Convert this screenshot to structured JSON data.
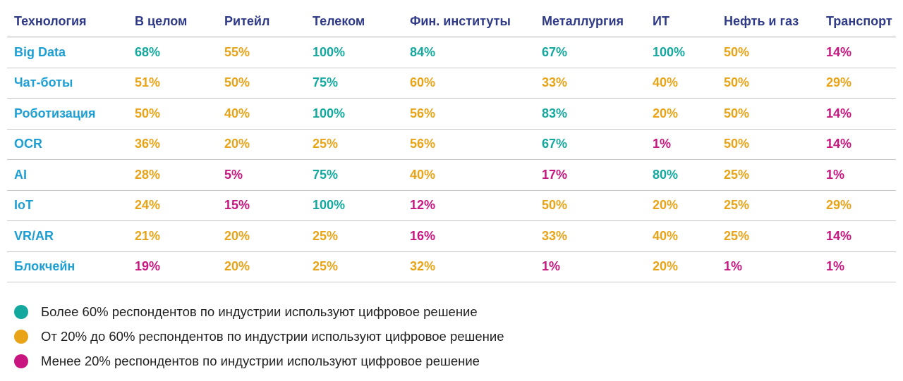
{
  "chart_data": {
    "type": "table",
    "columns": [
      "Технология",
      "В целом",
      "Ритейл",
      "Телеком",
      "Фин. институты",
      "Металлургия",
      "ИТ",
      "Нефть и газ",
      "Транспорт"
    ],
    "rows": [
      {
        "label": "Big Data",
        "values": [
          "68%",
          "55%",
          "100%",
          "84%",
          "67%",
          "100%",
          "50%",
          "14%"
        ]
      },
      {
        "label": "Чат-боты",
        "values": [
          "51%",
          "50%",
          "75%",
          "60%",
          "33%",
          "40%",
          "50%",
          "29%"
        ]
      },
      {
        "label": "Роботизация",
        "values": [
          "50%",
          "40%",
          "100%",
          "56%",
          "83%",
          "20%",
          "50%",
          "14%"
        ]
      },
      {
        "label": "OCR",
        "values": [
          "36%",
          "20%",
          "25%",
          "56%",
          "67%",
          "1%",
          "50%",
          "14%"
        ]
      },
      {
        "label": "AI",
        "values": [
          "28%",
          "5%",
          "75%",
          "40%",
          "17%",
          "80%",
          "25%",
          "1%"
        ]
      },
      {
        "label": "IoT",
        "values": [
          "24%",
          "15%",
          "100%",
          "12%",
          "50%",
          "20%",
          "25%",
          "29%"
        ]
      },
      {
        "label": "VR/AR",
        "values": [
          "21%",
          "20%",
          "25%",
          "16%",
          "33%",
          "40%",
          "25%",
          "14%"
        ]
      },
      {
        "label": "Блокчейн",
        "values": [
          "19%",
          "20%",
          "25%",
          "32%",
          "1%",
          "20%",
          "1%",
          "1%"
        ]
      }
    ],
    "levels": [
      {
        "key": "high",
        "color": "#13a89e",
        "text": "Более 60% респондентов по индустрии используют цифровое решение"
      },
      {
        "key": "mid",
        "color": "#e8a317",
        "text": "От 20% до 60% респондентов по индустрии используют цифровое решение"
      },
      {
        "key": "low",
        "color": "#c8157f",
        "text": "Менее 20% респондентов по индустрии используют цифровое решение"
      }
    ]
  }
}
